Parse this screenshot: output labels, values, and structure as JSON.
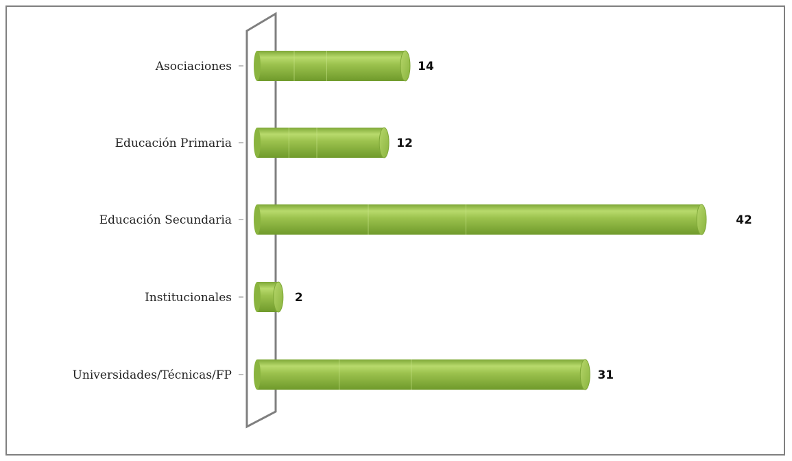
{
  "chart_data": {
    "type": "bar",
    "orientation": "horizontal",
    "style": "3d-cylinder",
    "categories": [
      "Asociaciones",
      "Educación Primaria",
      "Educación Secundaria",
      "Institucionales",
      "Universidades/Técnicas/FP"
    ],
    "values": [
      14,
      12,
      42,
      2,
      31
    ],
    "data_labels": [
      "14",
      "12",
      "42",
      "2",
      "31"
    ],
    "title": "",
    "xlabel": "",
    "ylabel": "",
    "xlim": [
      0,
      42
    ],
    "grid": false,
    "legend": "none"
  },
  "colors": {
    "bar_fill": "#9cc24e",
    "bar_highlight": "#c9e58a",
    "bar_shadow": "#6f9a2b",
    "wall": "#7f7f7f",
    "frame": "#7f7f7f"
  }
}
